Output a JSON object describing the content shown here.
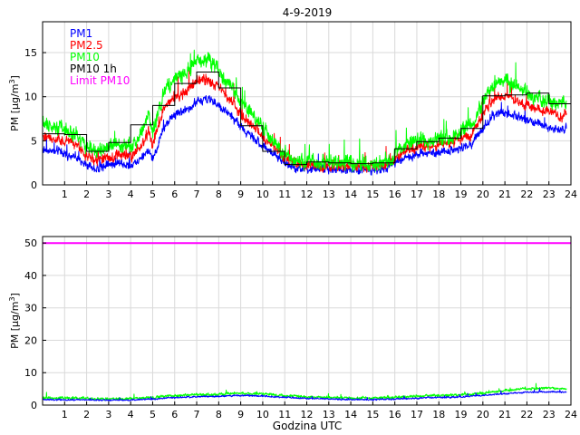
{
  "chart_data": [
    {
      "type": "line",
      "title": "4-9-2019",
      "xlabel": "",
      "ylabel": "PM [µg/m³]",
      "ylabel_parts": {
        "text": "PM [µg/m",
        "sup": "3",
        "end": "]"
      },
      "xlim": [
        0,
        24
      ],
      "ylim": [
        0,
        18.5
      ],
      "x_ticks": [
        1,
        2,
        3,
        4,
        5,
        6,
        7,
        8,
        9,
        10,
        11,
        12,
        13,
        14,
        15,
        16,
        17,
        18,
        19,
        20,
        21,
        22,
        23,
        24
      ],
      "x_tick_labels": [
        "1",
        "2",
        "3",
        "4",
        "5",
        "6",
        "7",
        "8",
        "9",
        "10",
        "11",
        "12",
        "13",
        "14",
        "15",
        "16",
        "17",
        "18",
        "19",
        "20",
        "21",
        "22",
        "23",
        "24"
      ],
      "y_ticks": [
        0,
        5,
        10,
        15
      ],
      "y_tick_labels": [
        "0",
        "5",
        "10",
        "15"
      ],
      "grid": true,
      "legend": [
        {
          "name": "PM1",
          "color": "#0000ff"
        },
        {
          "name": "PM2.5",
          "color": "#ff0000"
        },
        {
          "name": "PM10",
          "color": "#00ff00"
        },
        {
          "name": "PM10 1h",
          "color": "#000000"
        },
        {
          "name": "Limit PM10",
          "color": "#ff00ff"
        }
      ],
      "legend_position": "top-left",
      "series": [
        {
          "name": "PM1",
          "color": "#0000ff",
          "kind": "noisy",
          "noise": 0.6,
          "x": [
            0,
            0.5,
            1,
            1.5,
            2,
            2.5,
            3,
            3.5,
            4,
            4.5,
            4.8,
            5,
            5.5,
            6,
            6.5,
            7,
            7.5,
            8,
            8.5,
            9,
            9.5,
            10,
            10.5,
            11,
            11.5,
            12,
            13,
            14,
            15,
            15.5,
            16,
            16.5,
            17,
            17.5,
            18,
            18.5,
            19,
            19.5,
            20,
            20.5,
            21,
            21.5,
            22,
            22.5,
            23,
            23.5,
            23.8
          ],
          "y": [
            4,
            3.9,
            3.6,
            3.2,
            2.2,
            1.8,
            2.3,
            2.5,
            2.2,
            3.2,
            4,
            3,
            6.5,
            8,
            8.5,
            9.5,
            9.8,
            9,
            8,
            6.5,
            5.5,
            4.5,
            3.5,
            2.5,
            2,
            1.8,
            1.8,
            1.7,
            1.7,
            1.8,
            2.5,
            3.2,
            3.5,
            3.5,
            3.6,
            3.8,
            4.2,
            4.7,
            6.5,
            8,
            8.2,
            7.8,
            7.3,
            7,
            6.6,
            6.2,
            6.6
          ]
        },
        {
          "name": "PM2.5",
          "color": "#ff0000",
          "kind": "noisy",
          "noise": 0.7,
          "x": [
            0,
            0.5,
            1,
            1.5,
            2,
            2.5,
            3,
            3.5,
            4,
            4.5,
            4.8,
            5,
            5.5,
            6,
            6.5,
            7,
            7.5,
            8,
            8.5,
            9,
            9.5,
            10,
            10.5,
            11,
            11.5,
            12,
            13,
            14,
            15,
            15.5,
            16,
            16.5,
            17,
            17.5,
            18,
            18.5,
            19,
            19.5,
            20,
            20.5,
            21,
            21.5,
            22,
            22.5,
            23,
            23.5,
            23.8
          ],
          "y": [
            5.5,
            5.3,
            5,
            4.5,
            3.3,
            2.8,
            3.2,
            3.5,
            3.2,
            4.5,
            6,
            4.5,
            8.5,
            10,
            10.5,
            11.8,
            12,
            11,
            9.8,
            8,
            6.8,
            5.5,
            4.3,
            3,
            2.5,
            2.2,
            2.2,
            2.1,
            2.1,
            2.2,
            3,
            3.9,
            4.3,
            4.3,
            4.5,
            4.7,
            5.2,
            5.8,
            8,
            9.8,
            10.2,
            9.5,
            9,
            8.6,
            8.2,
            7.7,
            8.2
          ]
        },
        {
          "name": "PM10",
          "color": "#00ff00",
          "kind": "noisy",
          "noise": 1.0,
          "x": [
            0,
            0.5,
            1,
            1.5,
            2,
            2.5,
            3,
            3.5,
            4,
            4.5,
            4.8,
            5,
            5.5,
            6,
            6.5,
            7,
            7.5,
            8,
            8.5,
            9,
            9.5,
            10,
            10.5,
            11,
            11.5,
            12,
            13,
            14,
            15,
            15.5,
            16,
            16.5,
            17,
            17.5,
            18,
            18.5,
            19,
            19.5,
            20,
            20.5,
            21,
            21.5,
            22,
            22.5,
            23,
            23.5,
            23.8
          ],
          "y": [
            6.8,
            6.6,
            6.3,
            5.8,
            4.3,
            3.7,
            4.2,
            4.5,
            4.2,
            5.8,
            8,
            6,
            10.5,
            12,
            12.5,
            14,
            14.2,
            13,
            11.5,
            9.5,
            8,
            6.5,
            5,
            3.5,
            2.8,
            2.6,
            2.6,
            2.5,
            2.5,
            2.6,
            3.5,
            4.5,
            5,
            5,
            5.2,
            5.5,
            6,
            6.8,
            9.5,
            11.5,
            12,
            11.2,
            10.5,
            10,
            9.5,
            9,
            9.5
          ]
        },
        {
          "name": "PM10 1h",
          "color": "#000000",
          "kind": "step",
          "x": [
            0,
            1,
            2,
            3,
            4,
            5,
            6,
            7,
            8,
            9,
            10,
            11,
            12,
            13,
            14,
            15,
            16,
            17,
            18,
            19,
            20,
            21,
            22,
            23
          ],
          "y": [
            5.8,
            5.7,
            3.8,
            4.8,
            6.8,
            9.0,
            11.5,
            12.8,
            11.0,
            6.7,
            3.8,
            2.3,
            2.6,
            2.5,
            2.4,
            2.5,
            4.1,
            4.9,
            5.3,
            6.4,
            10.1,
            10.2,
            10.4,
            9.2
          ]
        }
      ]
    },
    {
      "type": "line",
      "title": "",
      "xlabel": "Godzina UTC",
      "ylabel": "PM [µg/m³]",
      "ylabel_parts": {
        "text": "PM [µg/m",
        "sup": "3",
        "end": "]"
      },
      "xlim": [
        0,
        24
      ],
      "ylim": [
        0,
        52
      ],
      "x_ticks": [
        1,
        2,
        3,
        4,
        5,
        6,
        7,
        8,
        9,
        10,
        11,
        12,
        13,
        14,
        15,
        16,
        17,
        18,
        19,
        20,
        21,
        22,
        23,
        24
      ],
      "x_tick_labels": [
        "1",
        "2",
        "3",
        "4",
        "5",
        "6",
        "7",
        "8",
        "9",
        "10",
        "11",
        "12",
        "13",
        "14",
        "15",
        "16",
        "17",
        "18",
        "19",
        "20",
        "21",
        "22",
        "23",
        "24"
      ],
      "y_ticks": [
        0,
        10,
        20,
        30,
        40,
        50
      ],
      "y_tick_labels": [
        "0",
        "10",
        "20",
        "30",
        "40",
        "50"
      ],
      "grid": true,
      "series": [
        {
          "name": "Limit PM10",
          "color": "#ff00ff",
          "kind": "line",
          "x": [
            0,
            24
          ],
          "y": [
            50,
            50
          ]
        },
        {
          "name": "PM10",
          "color": "#00ff00",
          "kind": "noisy",
          "noise": 0.5,
          "x": [
            0,
            2,
            3,
            4,
            5,
            6,
            7,
            8,
            9,
            10,
            11,
            12,
            13,
            14,
            15,
            16,
            17,
            18,
            19,
            20,
            21,
            22,
            23,
            23.8
          ],
          "y": [
            2.3,
            2.1,
            1.9,
            2,
            2.4,
            3,
            3.2,
            3.3,
            3.7,
            3.4,
            2.9,
            2.6,
            2.4,
            2.2,
            2.2,
            2.4,
            2.8,
            3,
            3.2,
            3.7,
            4.4,
            5.1,
            5.2,
            5
          ]
        },
        {
          "name": "PM1",
          "color": "#0000ff",
          "kind": "noisy",
          "noise": 0.3,
          "x": [
            0,
            2,
            3,
            4,
            5,
            6,
            7,
            8,
            9,
            10,
            11,
            12,
            13,
            14,
            15,
            16,
            17,
            18,
            19,
            20,
            21,
            22,
            23,
            23.8
          ],
          "y": [
            1.7,
            1.6,
            1.5,
            1.6,
            1.9,
            2.3,
            2.6,
            2.7,
            3,
            2.8,
            2.4,
            2.1,
            1.9,
            1.7,
            1.7,
            1.9,
            2.2,
            2.4,
            2.5,
            3,
            3.5,
            4,
            4.1,
            4
          ]
        }
      ]
    }
  ]
}
